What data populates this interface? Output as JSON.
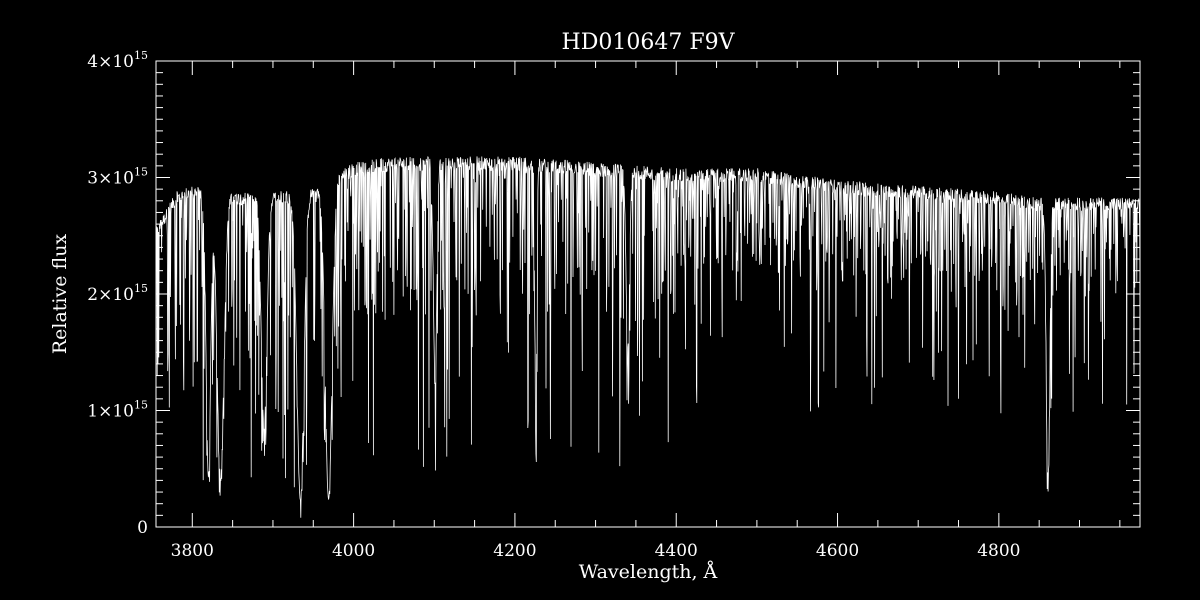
{
  "chart_data": {
    "type": "line",
    "title": "HD010647  F9V",
    "xlabel": "Wavelength, Å",
    "ylabel": "Relative flux",
    "xlim": [
      3755,
      4975
    ],
    "ylim": [
      0,
      4000000000000000.0
    ],
    "x_ticks": [
      {
        "value": 3800,
        "label": "3800"
      },
      {
        "value": 4000,
        "label": "4000"
      },
      {
        "value": 4200,
        "label": "4200"
      },
      {
        "value": 4400,
        "label": "4400"
      },
      {
        "value": 4600,
        "label": "4600"
      },
      {
        "value": 4800,
        "label": "4800"
      }
    ],
    "y_ticks": [
      {
        "value": 0,
        "mantissa": "0",
        "exponent": ""
      },
      {
        "value": 1000000000000000.0,
        "mantissa": "1×10",
        "exponent": "15"
      },
      {
        "value": 2000000000000000.0,
        "mantissa": "2×10",
        "exponent": "15"
      },
      {
        "value": 3000000000000000.0,
        "mantissa": "3×10",
        "exponent": "15"
      },
      {
        "value": 4000000000000000.0,
        "mantissa": "4×10",
        "exponent": "15"
      }
    ],
    "x_minor_step": 50,
    "y_minor_step": 100000000000000.0,
    "continuum_x": [
      3755,
      3780,
      3800,
      3850,
      3900,
      3950,
      4000,
      4050,
      4100,
      4150,
      4200,
      4300,
      4400,
      4500,
      4600,
      4700,
      4800,
      4850,
      4900,
      4975
    ],
    "continuum_y": [
      2550000000000000.0,
      2850000000000000.0,
      2900000000000000.0,
      2850000000000000.0,
      2850000000000000.0,
      2900000000000000.0,
      3100000000000000.0,
      3150000000000000.0,
      3150000000000000.0,
      3150000000000000.0,
      3150000000000000.0,
      3100000000000000.0,
      3050000000000000.0,
      3050000000000000.0,
      2950000000000000.0,
      2900000000000000.0,
      2850000000000000.0,
      2800000000000000.0,
      2800000000000000.0,
      2800000000000000.0
    ],
    "absorption_lines": [
      {
        "x": 3820,
        "depth": 0.85,
        "width": 4
      },
      {
        "x": 3835,
        "depth": 0.85,
        "width": 6
      },
      {
        "x": 3889,
        "depth": 0.7,
        "width": 5
      },
      {
        "x": 3934,
        "depth": 0.92,
        "width": 6
      },
      {
        "x": 3969,
        "depth": 0.92,
        "width": 6
      },
      {
        "x": 4101,
        "depth": 0.6,
        "width": 3
      },
      {
        "x": 4226,
        "depth": 0.8,
        "width": 1.5
      },
      {
        "x": 4340,
        "depth": 0.5,
        "width": 3
      },
      {
        "x": 4861,
        "depth": 0.85,
        "width": 3
      }
    ],
    "series": [
      {
        "color": "#ffffff"
      }
    ]
  }
}
